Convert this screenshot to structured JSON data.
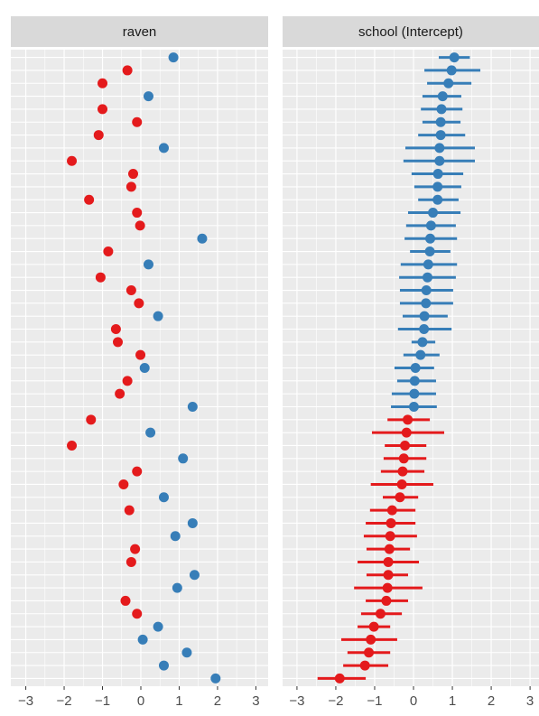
{
  "chart_data": [
    {
      "type": "dot",
      "title": "raven",
      "values": [
        0.85,
        -0.35,
        -1.0,
        0.2,
        -1.0,
        -0.1,
        -1.1,
        0.6,
        -1.8,
        -0.2,
        -0.25,
        -1.35,
        -0.1,
        -0.02,
        1.6,
        -0.85,
        0.2,
        -1.05,
        -0.25,
        -0.05,
        0.45,
        -0.65,
        -0.6,
        -0.01,
        0.1,
        -0.35,
        -0.55,
        1.35,
        -1.3,
        0.25,
        -1.8,
        1.1,
        -0.1,
        -0.45,
        0.6,
        -0.3,
        1.35,
        0.9,
        -0.15,
        -0.25,
        1.4,
        0.95,
        -0.4,
        -0.1,
        0.45,
        0.05,
        1.2,
        0.6,
        1.95
      ],
      "positive_color": "#377eb8",
      "negative_color": "#e41a1c",
      "xlim": [
        -3.39,
        3.32
      ],
      "xticks": [
        {
          "value": -3,
          "label": "−3"
        },
        {
          "value": -2,
          "label": "−2"
        },
        {
          "value": -1,
          "label": "−1"
        },
        0,
        1,
        2,
        3
      ]
    },
    {
      "type": "dot",
      "title": "school (Intercept)",
      "values": [
        1.05,
        0.98,
        0.9,
        0.75,
        0.72,
        0.7,
        0.7,
        0.67,
        0.67,
        0.63,
        0.62,
        0.62,
        0.5,
        0.45,
        0.43,
        0.42,
        0.38,
        0.36,
        0.33,
        0.32,
        0.28,
        0.27,
        0.23,
        0.18,
        0.05,
        0.03,
        0.02,
        0.01,
        -0.15,
        -0.18,
        -0.22,
        -0.25,
        -0.28,
        -0.3,
        -0.35,
        -0.55,
        -0.58,
        -0.6,
        -0.62,
        -0.65,
        -0.65,
        -0.67,
        -0.7,
        -0.85,
        -1.02,
        -1.1,
        -1.15,
        -1.25,
        -1.9
      ],
      "lower": [
        0.65,
        0.28,
        0.35,
        0.23,
        0.19,
        0.23,
        0.12,
        -0.21,
        -0.26,
        -0.05,
        0.02,
        0.12,
        -0.14,
        -0.19,
        -0.23,
        -0.09,
        -0.33,
        -0.37,
        -0.35,
        -0.35,
        -0.28,
        -0.4,
        -0.05,
        -0.26,
        -0.49,
        -0.42,
        -0.56,
        -0.58,
        -0.67,
        -1.07,
        -0.74,
        -0.77,
        -0.84,
        -1.1,
        -0.79,
        -1.12,
        -1.23,
        -1.28,
        -1.21,
        -1.44,
        -1.21,
        -1.53,
        -1.23,
        -1.35,
        -1.44,
        -1.86,
        -1.7,
        -1.81,
        -2.47
      ],
      "upper": [
        1.45,
        1.72,
        1.49,
        1.23,
        1.26,
        1.21,
        1.33,
        1.58,
        1.58,
        1.28,
        1.23,
        1.16,
        1.21,
        1.09,
        1.12,
        0.95,
        1.12,
        1.09,
        1.02,
        1.02,
        0.88,
        0.98,
        0.56,
        0.67,
        0.53,
        0.58,
        0.58,
        0.6,
        0.42,
        0.79,
        0.33,
        0.33,
        0.28,
        0.51,
        0.12,
        0.05,
        0.05,
        0.09,
        -0.09,
        0.14,
        -0.14,
        0.23,
        -0.14,
        -0.3,
        -0.6,
        -0.42,
        -0.6,
        -0.65,
        -1.23
      ],
      "positive_color": "#377eb8",
      "negative_color": "#e41a1c",
      "xlim": [
        -3.37,
        3.23
      ],
      "xticks": [
        {
          "value": -3,
          "label": "−3"
        },
        {
          "value": -2,
          "label": "−2"
        },
        {
          "value": -1,
          "label": "−1"
        },
        0,
        1,
        2,
        3
      ]
    }
  ]
}
